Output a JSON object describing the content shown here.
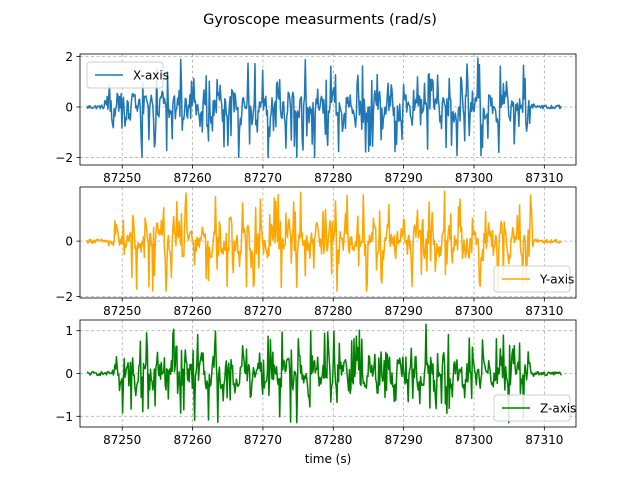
{
  "figure": {
    "suptitle": "Gyroscope measurments (rad/s)"
  },
  "chart_data": [
    {
      "type": "line",
      "title": "",
      "xlabel": "",
      "ylabel": "",
      "xlim": [
        87244.0,
        87314.5
      ],
      "ylim": [
        -2.3,
        2.1
      ],
      "xticks": [
        87250,
        87260,
        87270,
        87280,
        87290,
        87300,
        87310
      ],
      "xtick_labels": [
        "87250",
        "87260",
        "87270",
        "87280",
        "87290",
        "87300",
        "87310"
      ],
      "yticks": [
        -2,
        0,
        2
      ],
      "ytick_labels": [
        "−2",
        "0",
        "2"
      ],
      "grid": true,
      "legend": "upper-left",
      "series": [
        {
          "name": "X-axis",
          "color": "#1f77b4",
          "description": "oscillating signal, quiet near 0 from about 87245 to 87247.5, active with amplitude up to about ±2 from 87247.5 to 87308.5, quiet near 0 until about 87312.5",
          "start": 87245.0,
          "end": 87312.5,
          "active_start": 87247.5,
          "active_end": 87308.5,
          "amplitude": 2.0
        }
      ]
    },
    {
      "type": "line",
      "title": "",
      "xlabel": "",
      "ylabel": "",
      "xlim": [
        87244.0,
        87314.5
      ],
      "ylim": [
        -2.05,
        1.95
      ],
      "xticks": [
        87250,
        87260,
        87270,
        87280,
        87290,
        87300,
        87310
      ],
      "xtick_labels": [
        "87250",
        "87260",
        "87270",
        "87280",
        "87290",
        "87300",
        "87310"
      ],
      "yticks": [
        -2,
        0
      ],
      "ytick_labels": [
        "−2",
        "0"
      ],
      "grid": true,
      "legend": "lower-right",
      "series": [
        {
          "name": "Y-axis",
          "color": "#ffa500",
          "description": "oscillating signal, active with amplitude up to about ±1.8 from about 87248 to 87309",
          "start": 87245.0,
          "end": 87312.5,
          "active_start": 87248.0,
          "active_end": 87309.0,
          "amplitude": 1.8
        }
      ]
    },
    {
      "type": "line",
      "title": "",
      "xlabel": "time (s)",
      "ylabel": "",
      "xlim": [
        87244.0,
        87314.5
      ],
      "ylim": [
        -1.25,
        1.25
      ],
      "xticks": [
        87250,
        87260,
        87270,
        87280,
        87290,
        87300,
        87310
      ],
      "xtick_labels": [
        "87250",
        "87260",
        "87270",
        "87280",
        "87290",
        "87300",
        "87310"
      ],
      "yticks": [
        -1,
        0,
        1
      ],
      "ytick_labels": [
        "−1",
        "0",
        "1"
      ],
      "grid": true,
      "legend": "lower-right",
      "series": [
        {
          "name": "Z-axis",
          "color": "#008000",
          "description": "oscillating signal, active with amplitude up to about ±1.15 from about 87248.5 to 87308.5",
          "start": 87245.0,
          "end": 87312.5,
          "active_start": 87248.5,
          "active_end": 87308.5,
          "amplitude": 1.15
        }
      ]
    }
  ]
}
